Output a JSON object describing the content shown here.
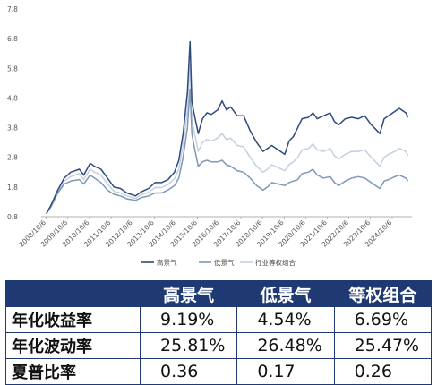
{
  "colors": {
    "series_high": "#2f4a7d",
    "series_low": "#7d98b8",
    "series_equal": "#c5d0dd",
    "table_header_bg": "#1f3a73",
    "table_border": "#1f3a73",
    "axis_text": "#555555"
  },
  "chart_data": {
    "type": "line",
    "x": [
      "2008/10/6",
      "2009/10/6",
      "2010/10/6",
      "2011/10/6",
      "2012/10/6",
      "2013/10/6",
      "2014/10/6",
      "2015/10/6",
      "2016/10/6",
      "2017/10/6",
      "2018/10/6",
      "2019/10/6",
      "2020/10/6",
      "2021/10/6",
      "2022/10/6",
      "2023/10/6",
      "2024/10/6"
    ],
    "yticks": [
      "0.8",
      "1.8",
      "2.8",
      "3.8",
      "4.8",
      "5.8",
      "6.8",
      "7.8"
    ],
    "ylim": [
      0.8,
      7.8
    ],
    "xlim": [
      2008.7,
      2025.6
    ],
    "grid": false,
    "legend_position": "bottom",
    "series": [
      {
        "name": "高景气",
        "points": [
          [
            2008.77,
            0.9
          ],
          [
            2009.0,
            1.2
          ],
          [
            2009.3,
            1.7
          ],
          [
            2009.6,
            2.1
          ],
          [
            2009.9,
            2.3
          ],
          [
            2010.3,
            2.4
          ],
          [
            2010.5,
            2.2
          ],
          [
            2010.8,
            2.6
          ],
          [
            2011.0,
            2.5
          ],
          [
            2011.3,
            2.4
          ],
          [
            2011.6,
            2.1
          ],
          [
            2011.9,
            1.8
          ],
          [
            2012.2,
            1.75
          ],
          [
            2012.5,
            1.6
          ],
          [
            2012.9,
            1.5
          ],
          [
            2013.2,
            1.65
          ],
          [
            2013.5,
            1.75
          ],
          [
            2013.8,
            1.95
          ],
          [
            2014.1,
            1.95
          ],
          [
            2014.4,
            2.05
          ],
          [
            2014.7,
            2.3
          ],
          [
            2014.9,
            2.7
          ],
          [
            2015.1,
            3.6
          ],
          [
            2015.3,
            5.0
          ],
          [
            2015.42,
            6.7
          ],
          [
            2015.5,
            4.7
          ],
          [
            2015.6,
            4.3
          ],
          [
            2015.8,
            3.6
          ],
          [
            2016.0,
            4.1
          ],
          [
            2016.2,
            4.3
          ],
          [
            2016.4,
            4.25
          ],
          [
            2016.7,
            4.4
          ],
          [
            2016.9,
            4.7
          ],
          [
            2017.1,
            4.4
          ],
          [
            2017.3,
            4.5
          ],
          [
            2017.6,
            4.2
          ],
          [
            2017.9,
            4.2
          ],
          [
            2018.2,
            3.7
          ],
          [
            2018.5,
            3.3
          ],
          [
            2018.8,
            3.0
          ],
          [
            2019.0,
            3.1
          ],
          [
            2019.2,
            3.2
          ],
          [
            2019.5,
            3.05
          ],
          [
            2019.8,
            2.9
          ],
          [
            2020.0,
            3.35
          ],
          [
            2020.2,
            3.5
          ],
          [
            2020.4,
            3.8
          ],
          [
            2020.6,
            4.1
          ],
          [
            2020.9,
            4.15
          ],
          [
            2021.1,
            4.3
          ],
          [
            2021.3,
            4.1
          ],
          [
            2021.6,
            4.2
          ],
          [
            2021.9,
            4.3
          ],
          [
            2022.1,
            4.0
          ],
          [
            2022.3,
            3.9
          ],
          [
            2022.6,
            4.1
          ],
          [
            2022.9,
            4.15
          ],
          [
            2023.2,
            4.1
          ],
          [
            2023.5,
            4.2
          ],
          [
            2023.8,
            3.9
          ],
          [
            2024.0,
            3.75
          ],
          [
            2024.2,
            3.6
          ],
          [
            2024.4,
            4.1
          ],
          [
            2024.6,
            4.2
          ],
          [
            2024.9,
            4.35
          ],
          [
            2025.1,
            4.45
          ],
          [
            2025.4,
            4.3
          ],
          [
            2025.5,
            4.15
          ]
        ]
      },
      {
        "name": "低景气",
        "points": [
          [
            2008.77,
            0.9
          ],
          [
            2009.0,
            1.15
          ],
          [
            2009.3,
            1.6
          ],
          [
            2009.6,
            1.9
          ],
          [
            2009.9,
            2.0
          ],
          [
            2010.3,
            2.05
          ],
          [
            2010.5,
            1.9
          ],
          [
            2010.8,
            2.2
          ],
          [
            2011.0,
            2.1
          ],
          [
            2011.3,
            1.95
          ],
          [
            2011.6,
            1.7
          ],
          [
            2011.9,
            1.55
          ],
          [
            2012.2,
            1.5
          ],
          [
            2012.5,
            1.4
          ],
          [
            2012.9,
            1.35
          ],
          [
            2013.2,
            1.45
          ],
          [
            2013.5,
            1.5
          ],
          [
            2013.8,
            1.6
          ],
          [
            2014.1,
            1.6
          ],
          [
            2014.4,
            1.7
          ],
          [
            2014.7,
            1.85
          ],
          [
            2014.9,
            2.1
          ],
          [
            2015.1,
            2.8
          ],
          [
            2015.3,
            3.8
          ],
          [
            2015.42,
            5.1
          ],
          [
            2015.5,
            3.6
          ],
          [
            2015.6,
            3.2
          ],
          [
            2015.8,
            2.5
          ],
          [
            2016.0,
            2.65
          ],
          [
            2016.2,
            2.7
          ],
          [
            2016.4,
            2.65
          ],
          [
            2016.7,
            2.65
          ],
          [
            2016.9,
            2.7
          ],
          [
            2017.1,
            2.55
          ],
          [
            2017.3,
            2.5
          ],
          [
            2017.6,
            2.35
          ],
          [
            2017.9,
            2.3
          ],
          [
            2018.2,
            2.1
          ],
          [
            2018.5,
            1.85
          ],
          [
            2018.8,
            1.7
          ],
          [
            2019.0,
            1.8
          ],
          [
            2019.2,
            1.95
          ],
          [
            2019.5,
            1.9
          ],
          [
            2019.8,
            1.85
          ],
          [
            2020.0,
            1.95
          ],
          [
            2020.2,
            2.0
          ],
          [
            2020.4,
            2.05
          ],
          [
            2020.6,
            2.25
          ],
          [
            2020.9,
            2.3
          ],
          [
            2021.1,
            2.4
          ],
          [
            2021.3,
            2.2
          ],
          [
            2021.6,
            2.1
          ],
          [
            2021.9,
            2.15
          ],
          [
            2022.1,
            1.95
          ],
          [
            2022.3,
            1.85
          ],
          [
            2022.6,
            2.0
          ],
          [
            2022.9,
            2.1
          ],
          [
            2023.2,
            2.15
          ],
          [
            2023.5,
            2.1
          ],
          [
            2023.8,
            1.95
          ],
          [
            2024.0,
            1.85
          ],
          [
            2024.2,
            1.75
          ],
          [
            2024.4,
            2.0
          ],
          [
            2024.6,
            2.05
          ],
          [
            2024.9,
            2.15
          ],
          [
            2025.1,
            2.2
          ],
          [
            2025.4,
            2.1
          ],
          [
            2025.5,
            2.0
          ]
        ]
      },
      {
        "name": "行业等权组合",
        "points": [
          [
            2008.77,
            0.9
          ],
          [
            2009.0,
            1.18
          ],
          [
            2009.3,
            1.65
          ],
          [
            2009.6,
            2.0
          ],
          [
            2009.9,
            2.15
          ],
          [
            2010.3,
            2.25
          ],
          [
            2010.5,
            2.05
          ],
          [
            2010.8,
            2.4
          ],
          [
            2011.0,
            2.3
          ],
          [
            2011.3,
            2.2
          ],
          [
            2011.6,
            1.9
          ],
          [
            2011.9,
            1.65
          ],
          [
            2012.2,
            1.6
          ],
          [
            2012.5,
            1.5
          ],
          [
            2012.9,
            1.42
          ],
          [
            2013.2,
            1.55
          ],
          [
            2013.5,
            1.62
          ],
          [
            2013.8,
            1.78
          ],
          [
            2014.1,
            1.78
          ],
          [
            2014.4,
            1.88
          ],
          [
            2014.7,
            2.08
          ],
          [
            2014.9,
            2.4
          ],
          [
            2015.1,
            3.2
          ],
          [
            2015.3,
            4.4
          ],
          [
            2015.42,
            5.9
          ],
          [
            2015.5,
            4.1
          ],
          [
            2015.6,
            3.7
          ],
          [
            2015.8,
            3.0
          ],
          [
            2016.0,
            3.3
          ],
          [
            2016.2,
            3.4
          ],
          [
            2016.4,
            3.35
          ],
          [
            2016.7,
            3.45
          ],
          [
            2016.9,
            3.6
          ],
          [
            2017.1,
            3.4
          ],
          [
            2017.3,
            3.45
          ],
          [
            2017.6,
            3.2
          ],
          [
            2017.9,
            3.15
          ],
          [
            2018.2,
            2.8
          ],
          [
            2018.5,
            2.5
          ],
          [
            2018.8,
            2.3
          ],
          [
            2019.0,
            2.4
          ],
          [
            2019.2,
            2.55
          ],
          [
            2019.5,
            2.45
          ],
          [
            2019.8,
            2.35
          ],
          [
            2020.0,
            2.55
          ],
          [
            2020.2,
            2.65
          ],
          [
            2020.4,
            2.8
          ],
          [
            2020.6,
            3.05
          ],
          [
            2020.9,
            3.1
          ],
          [
            2021.1,
            3.25
          ],
          [
            2021.3,
            3.05
          ],
          [
            2021.6,
            3.0
          ],
          [
            2021.9,
            3.1
          ],
          [
            2022.1,
            2.85
          ],
          [
            2022.3,
            2.75
          ],
          [
            2022.6,
            2.9
          ],
          [
            2022.9,
            3.0
          ],
          [
            2023.2,
            3.0
          ],
          [
            2023.5,
            3.05
          ],
          [
            2023.8,
            2.8
          ],
          [
            2024.0,
            2.65
          ],
          [
            2024.2,
            2.5
          ],
          [
            2024.4,
            2.8
          ],
          [
            2024.6,
            2.9
          ],
          [
            2024.9,
            3.0
          ],
          [
            2025.1,
            3.1
          ],
          [
            2025.4,
            3.0
          ],
          [
            2025.5,
            2.85
          ]
        ]
      }
    ]
  },
  "table": {
    "headers": [
      "",
      "高景气",
      "低景气",
      "等权组合"
    ],
    "rows": [
      {
        "label": "年化收益率",
        "values": [
          "9.19%",
          "4.54%",
          "6.69%"
        ]
      },
      {
        "label": "年化波动率",
        "values": [
          "25.81%",
          "26.48%",
          "25.47%"
        ]
      },
      {
        "label": "夏普比率",
        "values": [
          "0.36",
          "0.17",
          "0.26"
        ]
      }
    ]
  }
}
